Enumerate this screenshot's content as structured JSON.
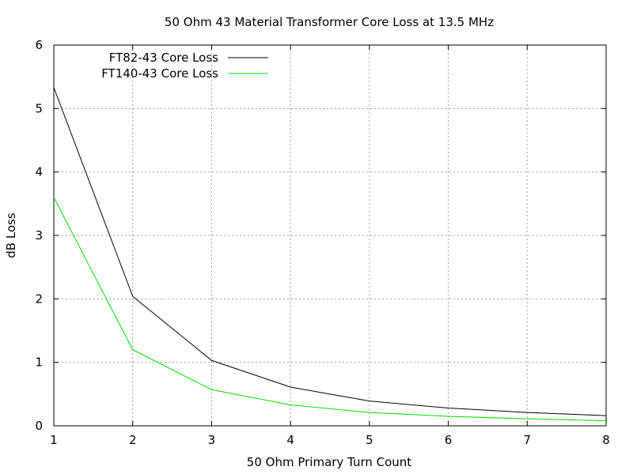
{
  "chart_data": {
    "type": "line",
    "title": "50 Ohm 43 Material Transformer Core Loss at 13.5 MHz",
    "xlabel": "50 Ohm Primary Turn Count",
    "ylabel": "dB Loss",
    "xlim": [
      1,
      8
    ],
    "ylim": [
      0,
      6
    ],
    "xticks": [
      1,
      2,
      3,
      4,
      5,
      6,
      7,
      8
    ],
    "yticks": [
      0,
      1,
      2,
      3,
      4,
      5,
      6
    ],
    "grid": true,
    "legend_position": "top-left",
    "x": [
      1,
      2,
      3,
      4,
      5,
      6,
      7,
      8
    ],
    "series": [
      {
        "name": "FT82-43 Core Loss",
        "color": "#000000",
        "values": [
          5.33,
          2.04,
          1.03,
          0.61,
          0.39,
          0.28,
          0.21,
          0.16
        ]
      },
      {
        "name": "FT140-43 Core Loss",
        "color": "#00dd00",
        "values": [
          3.6,
          1.2,
          0.57,
          0.33,
          0.21,
          0.15,
          0.11,
          0.08
        ]
      }
    ]
  }
}
